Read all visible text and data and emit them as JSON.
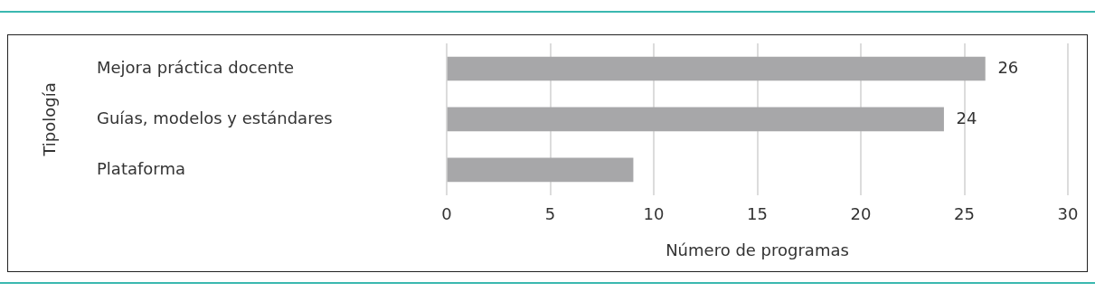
{
  "chart_data": {
    "type": "bar",
    "orientation": "horizontal",
    "ylabel": "Tipología",
    "xlabel": "Número de programas",
    "categories": [
      "Mejora práctica docente",
      "Guías, modelos y estándares",
      "Plataforma"
    ],
    "values": [
      26,
      24,
      9
    ],
    "value_labels": [
      "26",
      "24",
      null
    ],
    "color": "#a7a7a9",
    "xlim": [
      0,
      30
    ],
    "xticks": [
      0,
      5,
      10,
      15,
      20,
      25,
      30
    ],
    "grid": "x",
    "legend": false
  }
}
